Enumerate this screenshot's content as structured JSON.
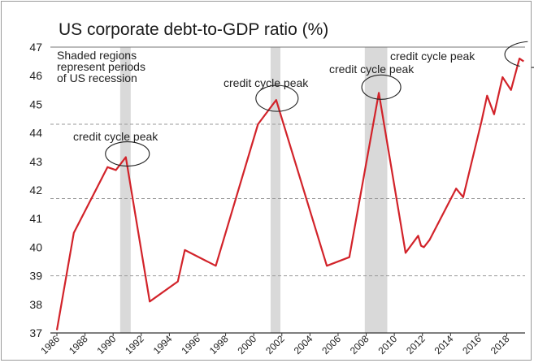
{
  "chart_data": {
    "type": "line",
    "title": "US corporate debt-to-GDP ratio (%)",
    "xlabel": "",
    "ylabel": "",
    "xlim": [
      1986,
      2019.3
    ],
    "ylim": [
      37,
      47
    ],
    "yticks": [
      37,
      38,
      39,
      40,
      41,
      42,
      43,
      44,
      45,
      46,
      47
    ],
    "ytick_labels": [
      "37",
      "38",
      "39",
      "40",
      "41",
      "42",
      "43",
      "44",
      "45",
      "46",
      "47"
    ],
    "xticks": [
      1986,
      1988,
      1990,
      1992,
      1994,
      1996,
      1998,
      2000,
      2002,
      2004,
      2006,
      2008,
      2010,
      2012,
      2014,
      2016,
      2018
    ],
    "xtick_labels": [
      "1986",
      "1988",
      "1990",
      "1992",
      "1994",
      "1996",
      "1998",
      "2000",
      "2002",
      "2004",
      "2006",
      "2008",
      "2010",
      "2012",
      "2014",
      "2016",
      "2018"
    ],
    "dashed_gridlines": [
      44.3,
      41.7,
      39.0
    ],
    "line_color": "#d2232a",
    "recession_color": "#d9d9d9",
    "recessions": [
      {
        "start": 1990.5,
        "end": 1991.25
      },
      {
        "start": 2001.2,
        "end": 2001.9
      },
      {
        "start": 2007.9,
        "end": 2009.5
      }
    ],
    "series": [
      {
        "points": [
          [
            1986.0,
            37.1
          ],
          [
            1987.2,
            40.5
          ],
          [
            1989.6,
            42.8
          ],
          [
            1990.2,
            42.7
          ],
          [
            1990.9,
            43.15
          ],
          [
            1992.6,
            38.1
          ],
          [
            1994.6,
            38.8
          ],
          [
            1995.1,
            39.9
          ],
          [
            1997.3,
            39.35
          ],
          [
            2000.3,
            44.3
          ],
          [
            2001.6,
            45.15
          ],
          [
            2005.2,
            39.35
          ],
          [
            2006.8,
            39.65
          ],
          [
            2008.9,
            45.4
          ],
          [
            2010.8,
            39.8
          ],
          [
            2011.7,
            40.4
          ],
          [
            2011.9,
            40.05
          ],
          [
            2012.1,
            40.0
          ],
          [
            2012.5,
            40.25
          ],
          [
            2014.4,
            42.05
          ],
          [
            2014.9,
            41.75
          ],
          [
            2016.2,
            44.4
          ],
          [
            2016.6,
            45.3
          ],
          [
            2017.1,
            44.65
          ],
          [
            2017.7,
            45.95
          ],
          [
            2018.3,
            45.5
          ],
          [
            2018.9,
            46.6
          ],
          [
            2019.2,
            46.5
          ]
        ]
      }
    ],
    "annotations": {
      "recession_note": [
        "Shaded regions",
        "represent periods",
        "of US recession"
      ],
      "peaks": [
        {
          "label": "credit cycle peak",
          "x": 1990.9,
          "y": 43.15
        },
        {
          "label": "credit cycle peak",
          "x": 2001.6,
          "y": 45.15
        },
        {
          "label": "credit cycle peak",
          "x": 2008.9,
          "y": 45.4
        },
        {
          "label": "credit cycle peak",
          "x": 2018.9,
          "y": 46.6
        }
      ]
    }
  }
}
